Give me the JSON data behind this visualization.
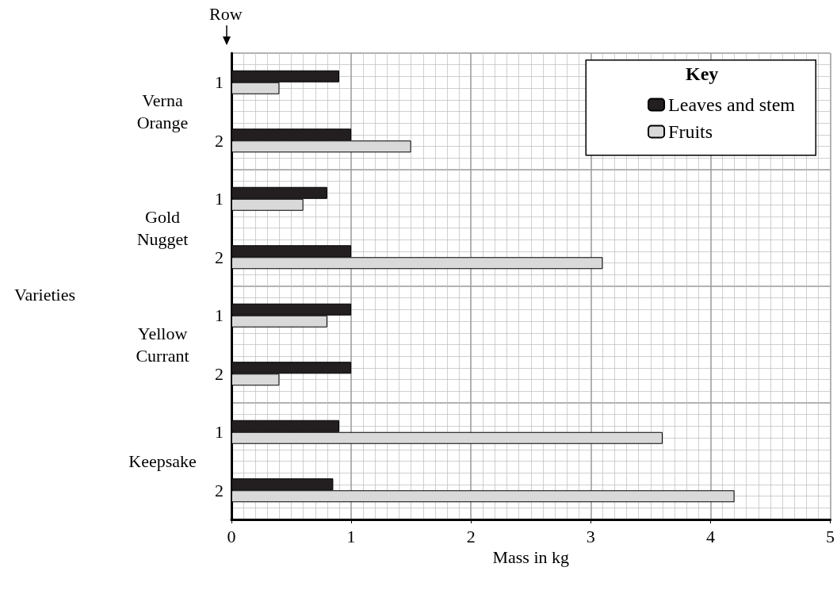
{
  "chart_data": {
    "type": "bar",
    "orientation": "horizontal",
    "xlabel": "Mass in kg",
    "legend_title": "Key",
    "legend": "top right",
    "grid": true,
    "categories": [
      "1",
      "2",
      "1",
      "2",
      "1",
      "2",
      "1",
      "2"
    ],
    "annotations": [
      "Row",
      "Varieties",
      "Verna\nOrange",
      "Gold\nNugget",
      "Yellow\nCurrant",
      "Keepsake"
    ],
    "series": [
      {
        "name": "Leaves and stem",
        "color": "#231f20",
        "values": [
          0.9,
          1.0,
          0.8,
          1.0,
          1.0,
          1.0,
          0.9,
          0.85
        ]
      },
      {
        "name": "Fruits",
        "color": "#d9d9d9",
        "values": [
          0.4,
          1.5,
          0.6,
          3.1,
          0.8,
          0.4,
          3.6,
          4.2
        ]
      }
    ],
    "xlim": [
      0,
      5
    ],
    "xticks": [
      0,
      1,
      2,
      3,
      4,
      5
    ]
  }
}
